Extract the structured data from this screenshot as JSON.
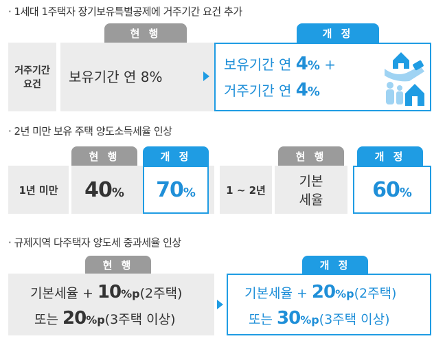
{
  "section1": {
    "title": "· 1세대 1주택자 장기보유특별공제에 거주기간 요건 추가",
    "current_tab": "현 행",
    "revised_tab": "개 정",
    "row_label_1": "거주기간",
    "row_label_2": "요건",
    "current_text": "보유기간 연 8%",
    "revised_line1_prefix": "보유기간 연 ",
    "revised_line1_num": "4",
    "revised_line1_unit": "%",
    "revised_line1_suffix": " +",
    "revised_line2_prefix": "거주기간 연 ",
    "revised_line2_num": "4",
    "revised_line2_unit": "%"
  },
  "section2": {
    "title": "· 2년 미만 보유 주택 양도소득세율 인상",
    "current_tab": "현 행",
    "revised_tab": "개 정",
    "row1_label": "1년 미만",
    "row1_current_num": "40",
    "row1_current_unit": "%",
    "row1_revised_num": "70",
    "row1_revised_unit": "%",
    "current_tab2": "현 행",
    "revised_tab2": "개 정",
    "row2_label": "1 ~ 2년",
    "row2_current_line1": "기본",
    "row2_current_line2": "세율",
    "row2_revised_num": "60",
    "row2_revised_unit": "%"
  },
  "section3": {
    "title": "· 규제지역 다주택자 양도세 중과세율 인상",
    "current_tab": "현 행",
    "revised_tab": "개 정",
    "current_line1_prefix": "기본세율 + ",
    "current_line1_num": "10",
    "current_line1_unit": "%p",
    "current_line1_suffix": "(2주택)",
    "current_line2_prefix": "또는 ",
    "current_line2_num": "20",
    "current_line2_unit": "%p",
    "current_line2_suffix": "(3주택 이상)",
    "revised_line1_prefix": "기본세율 + ",
    "revised_line1_num": "20",
    "revised_line1_unit": "%p",
    "revised_line1_suffix": "(2주택)",
    "revised_line2_prefix": "또는 ",
    "revised_line2_num": "30",
    "revised_line2_unit": "%p",
    "revised_line2_suffix": "(3주택 이상)"
  },
  "colors": {
    "accent": "#1f9ce3",
    "gray_tab": "#9b9b9b",
    "gray_box": "#ececec"
  },
  "icons": [
    "house-hand-icon",
    "family-house-icon"
  ]
}
